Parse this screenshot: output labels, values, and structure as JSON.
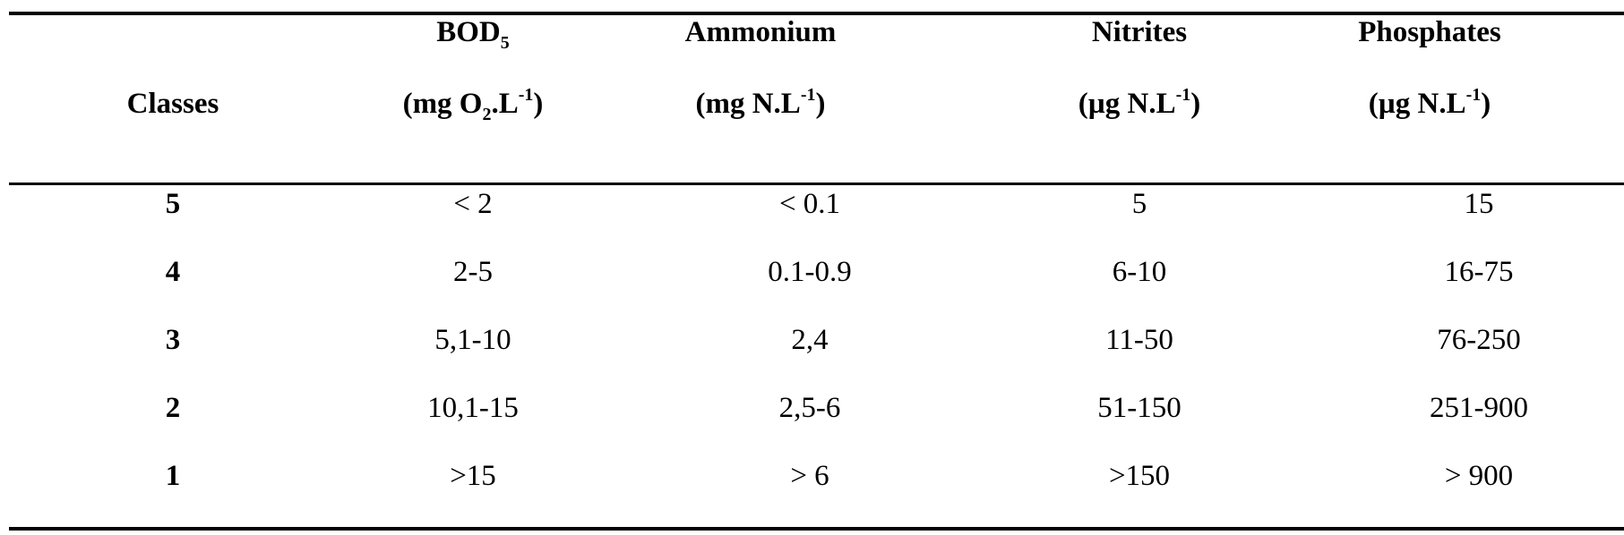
{
  "table": {
    "header": {
      "classes": "Classes",
      "bod": {
        "name_main": "BOD",
        "name_sub": "5",
        "unit_open": "(mg O",
        "unit_sub": "2",
        "unit_mid": ".L",
        "unit_sup": "-1",
        "unit_close": ")"
      },
      "ammonium": {
        "name": "Ammonium",
        "unit_open": "(mg N.L",
        "unit_sup": "-1",
        "unit_close": ")"
      },
      "nitrites": {
        "name": "Nitrites",
        "unit_open": "(µg N.L",
        "unit_sup": "-1",
        "unit_close": ")"
      },
      "phosphates": {
        "name": "Phosphates",
        "unit_open": "(µg N.L",
        "unit_sup": "-1",
        "unit_close": ")"
      }
    },
    "rows": [
      {
        "class": "5",
        "bod": "< 2",
        "ammonium": "< 0.1",
        "nitrites": "5",
        "phosphates": "15"
      },
      {
        "class": "4",
        "bod": "2-5",
        "ammonium": "0.1-0.9",
        "nitrites": "6-10",
        "phosphates": "16-75"
      },
      {
        "class": "3",
        "bod": "5,1-10",
        "ammonium": "2,4",
        "nitrites": "11-50",
        "phosphates": "76-250"
      },
      {
        "class": "2",
        "bod": "10,1-15",
        "ammonium": "2,5-6",
        "nitrites": "51-150",
        "phosphates": "251-900"
      },
      {
        "class": "1",
        "bod": ">15",
        "ammonium": "> 6",
        "nitrites": ">150",
        "phosphates": "> 900"
      }
    ]
  }
}
